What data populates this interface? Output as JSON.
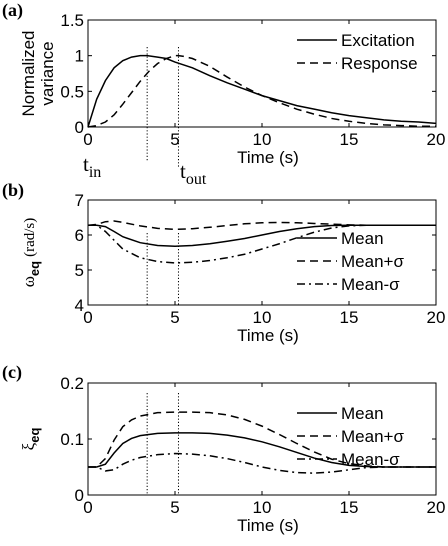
{
  "figure_text": {
    "panel_a_label": "(a)",
    "panel_b_label": "(b)",
    "panel_c_label": "(c)",
    "t_in": "t",
    "t_in_sub": "in",
    "t_out": "t",
    "t_out_sub": "out"
  },
  "chart_data": [
    {
      "type": "line",
      "panel": "(a)",
      "xlabel": "Time (s)",
      "ylabel": "Normalized variance",
      "ylabel_lines": [
        "Normalized",
        "variance"
      ],
      "xlim": [
        0,
        20
      ],
      "ylim": [
        0,
        1.5
      ],
      "xticks": [
        0,
        5,
        10,
        15,
        20
      ],
      "yticks": [
        0,
        0.5,
        1,
        1.5
      ],
      "ytick_labels": [
        "0",
        "0.5",
        "1",
        "1.5"
      ],
      "grid": false,
      "legend_position": "top-right",
      "vlines": [
        3.4,
        5.2
      ],
      "series": [
        {
          "name": "Excitation",
          "style": "solid",
          "x": [
            0,
            0.5,
            1,
            1.5,
            2,
            2.5,
            3,
            3.4,
            4,
            4.5,
            5,
            6,
            7,
            8,
            9,
            10,
            11,
            12,
            13,
            14,
            15,
            16,
            17,
            18,
            19,
            20
          ],
          "y": [
            0,
            0.39,
            0.65,
            0.83,
            0.93,
            0.98,
            1.0,
            1.0,
            0.98,
            0.96,
            0.91,
            0.83,
            0.72,
            0.62,
            0.53,
            0.44,
            0.37,
            0.3,
            0.25,
            0.2,
            0.16,
            0.13,
            0.1,
            0.08,
            0.07,
            0.05
          ]
        },
        {
          "name": "Response",
          "style": "dashed",
          "x": [
            0,
            0.5,
            1,
            1.5,
            2,
            2.5,
            3,
            3.5,
            4,
            4.5,
            5,
            5.2,
            5.5,
            6,
            7,
            8,
            9,
            10,
            11,
            12,
            13,
            14,
            15,
            16,
            17,
            18,
            19,
            20
          ],
          "y": [
            0,
            0.02,
            0.07,
            0.17,
            0.32,
            0.48,
            0.64,
            0.78,
            0.89,
            0.96,
            1.0,
            1.0,
            0.99,
            0.96,
            0.85,
            0.7,
            0.56,
            0.44,
            0.34,
            0.25,
            0.18,
            0.12,
            0.08,
            0.05,
            0.03,
            0.02,
            0.01,
            0.01
          ]
        }
      ]
    },
    {
      "type": "line",
      "panel": "(b)",
      "xlabel": "Time (s)",
      "ylabel": "ω_eq (rad/s)",
      "ylabel_symbol": "ω",
      "ylabel_sub": "eq",
      "ylabel_unit": "(rad/s)",
      "xlim": [
        0,
        20
      ],
      "ylim": [
        4,
        7
      ],
      "xticks": [
        0,
        5,
        10,
        15,
        20
      ],
      "yticks": [
        4,
        5,
        6,
        7
      ],
      "ytick_labels": [
        "4",
        "5",
        "6",
        "7"
      ],
      "grid": false,
      "legend_position": "right",
      "vlines": [
        3.4,
        5.2
      ],
      "series": [
        {
          "name": "Mean",
          "style": "solid",
          "x": [
            0,
            0.5,
            1,
            1.5,
            2,
            3,
            4,
            5,
            6,
            7,
            8,
            9,
            10,
            11,
            12,
            13,
            14,
            15,
            16,
            17,
            18,
            19,
            20
          ],
          "y": [
            6.28,
            6.28,
            6.24,
            6.1,
            5.95,
            5.78,
            5.7,
            5.68,
            5.7,
            5.75,
            5.82,
            5.9,
            6.0,
            6.1,
            6.18,
            6.24,
            6.27,
            6.28,
            6.28,
            6.28,
            6.28,
            6.28,
            6.28
          ]
        },
        {
          "name": "Mean+σ",
          "style": "dashed",
          "x": [
            0,
            0.5,
            1,
            1.5,
            2,
            3,
            4,
            5,
            6,
            7,
            8,
            9,
            10,
            11,
            12,
            13,
            14,
            15,
            16,
            17,
            18,
            19,
            20
          ],
          "y": [
            6.28,
            6.3,
            6.38,
            6.4,
            6.36,
            6.26,
            6.19,
            6.16,
            6.18,
            6.22,
            6.27,
            6.32,
            6.35,
            6.36,
            6.35,
            6.33,
            6.31,
            6.29,
            6.28,
            6.28,
            6.28,
            6.28,
            6.28
          ]
        },
        {
          "name": "Mean-σ",
          "style": "dashdot",
          "x": [
            0,
            0.5,
            1,
            1.5,
            2,
            3,
            4,
            5,
            6,
            7,
            8,
            9,
            10,
            11,
            12,
            13,
            14,
            15,
            16,
            17,
            18,
            19,
            20
          ],
          "y": [
            6.28,
            6.28,
            6.1,
            5.85,
            5.6,
            5.35,
            5.24,
            5.2,
            5.22,
            5.27,
            5.35,
            5.45,
            5.6,
            5.75,
            5.92,
            6.08,
            6.2,
            6.26,
            6.28,
            6.28,
            6.28,
            6.28,
            6.28
          ]
        }
      ]
    },
    {
      "type": "line",
      "panel": "(c)",
      "xlabel": "Time (s)",
      "ylabel": "ξ_eq",
      "ylabel_symbol": "ξ",
      "ylabel_sub": "eq",
      "xlim": [
        0,
        20
      ],
      "ylim": [
        0,
        0.2
      ],
      "xticks": [
        0,
        5,
        10,
        15,
        20
      ],
      "yticks": [
        0,
        0.1,
        0.2
      ],
      "ytick_labels": [
        "0",
        "0.1",
        "0.2"
      ],
      "grid": false,
      "legend_position": "top-right",
      "vlines": [
        3.4,
        5.2
      ],
      "series": [
        {
          "name": "Mean",
          "style": "solid",
          "x": [
            0,
            0.5,
            1,
            1.5,
            2,
            2.5,
            3,
            4,
            5,
            6,
            7,
            8,
            9,
            10,
            11,
            12,
            13,
            14,
            15,
            16,
            17,
            18,
            19,
            20
          ],
          "y": [
            0.05,
            0.05,
            0.055,
            0.075,
            0.092,
            0.101,
            0.106,
            0.11,
            0.111,
            0.111,
            0.11,
            0.107,
            0.102,
            0.095,
            0.086,
            0.076,
            0.066,
            0.058,
            0.053,
            0.051,
            0.05,
            0.05,
            0.05,
            0.05
          ]
        },
        {
          "name": "Mean+σ",
          "style": "dashed",
          "x": [
            0,
            0.5,
            1,
            1.5,
            2,
            2.5,
            3,
            4,
            5,
            6,
            7,
            8,
            9,
            10,
            11,
            12,
            13,
            14,
            15,
            16,
            17,
            18,
            19,
            20
          ],
          "y": [
            0.05,
            0.05,
            0.065,
            0.098,
            0.122,
            0.134,
            0.141,
            0.147,
            0.148,
            0.148,
            0.147,
            0.143,
            0.135,
            0.123,
            0.108,
            0.092,
            0.077,
            0.064,
            0.056,
            0.052,
            0.05,
            0.05,
            0.05,
            0.05
          ]
        },
        {
          "name": "Mean-σ",
          "style": "dashdot",
          "x": [
            0,
            0.5,
            1,
            1.5,
            2,
            2.5,
            3,
            4,
            5,
            6,
            7,
            8,
            9,
            10,
            11,
            12,
            13,
            14,
            15,
            16,
            17,
            18,
            19,
            20
          ],
          "y": [
            0.05,
            0.05,
            0.043,
            0.045,
            0.055,
            0.062,
            0.067,
            0.072,
            0.074,
            0.073,
            0.07,
            0.065,
            0.058,
            0.05,
            0.044,
            0.04,
            0.039,
            0.041,
            0.045,
            0.049,
            0.05,
            0.05,
            0.05,
            0.05
          ]
        }
      ]
    }
  ]
}
